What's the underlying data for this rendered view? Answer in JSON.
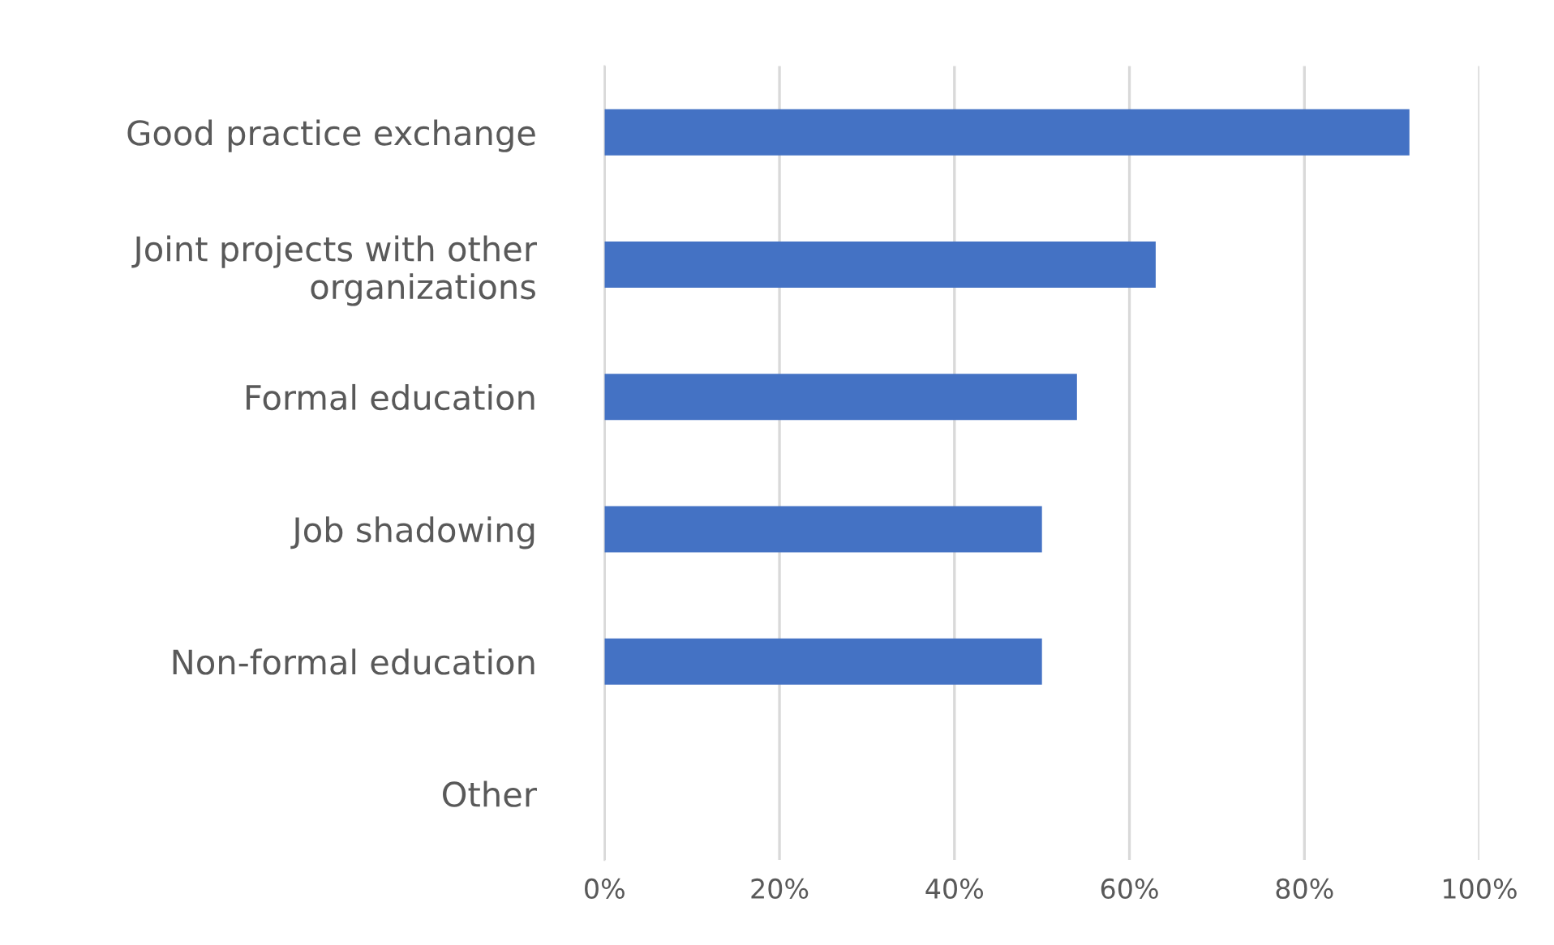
{
  "chart_data": {
    "type": "bar",
    "orientation": "horizontal",
    "categories": [
      "Good practice exchange",
      "Joint projects with other\norganizations",
      "Formal education",
      "Job shadowing",
      "Non-formal education",
      "Other"
    ],
    "values": [
      92,
      63,
      54,
      50,
      50,
      0
    ],
    "color": "#4472c4",
    "xlim": [
      0,
      100
    ],
    "xticks": [
      {
        "value": 0,
        "label": "0%"
      },
      {
        "value": 20,
        "label": "20%"
      },
      {
        "value": 40,
        "label": "40%"
      },
      {
        "value": 60,
        "label": "60%"
      },
      {
        "value": 80,
        "label": "80%"
      },
      {
        "value": 100,
        "label": "100%"
      }
    ],
    "grid": "x",
    "legend": false
  }
}
